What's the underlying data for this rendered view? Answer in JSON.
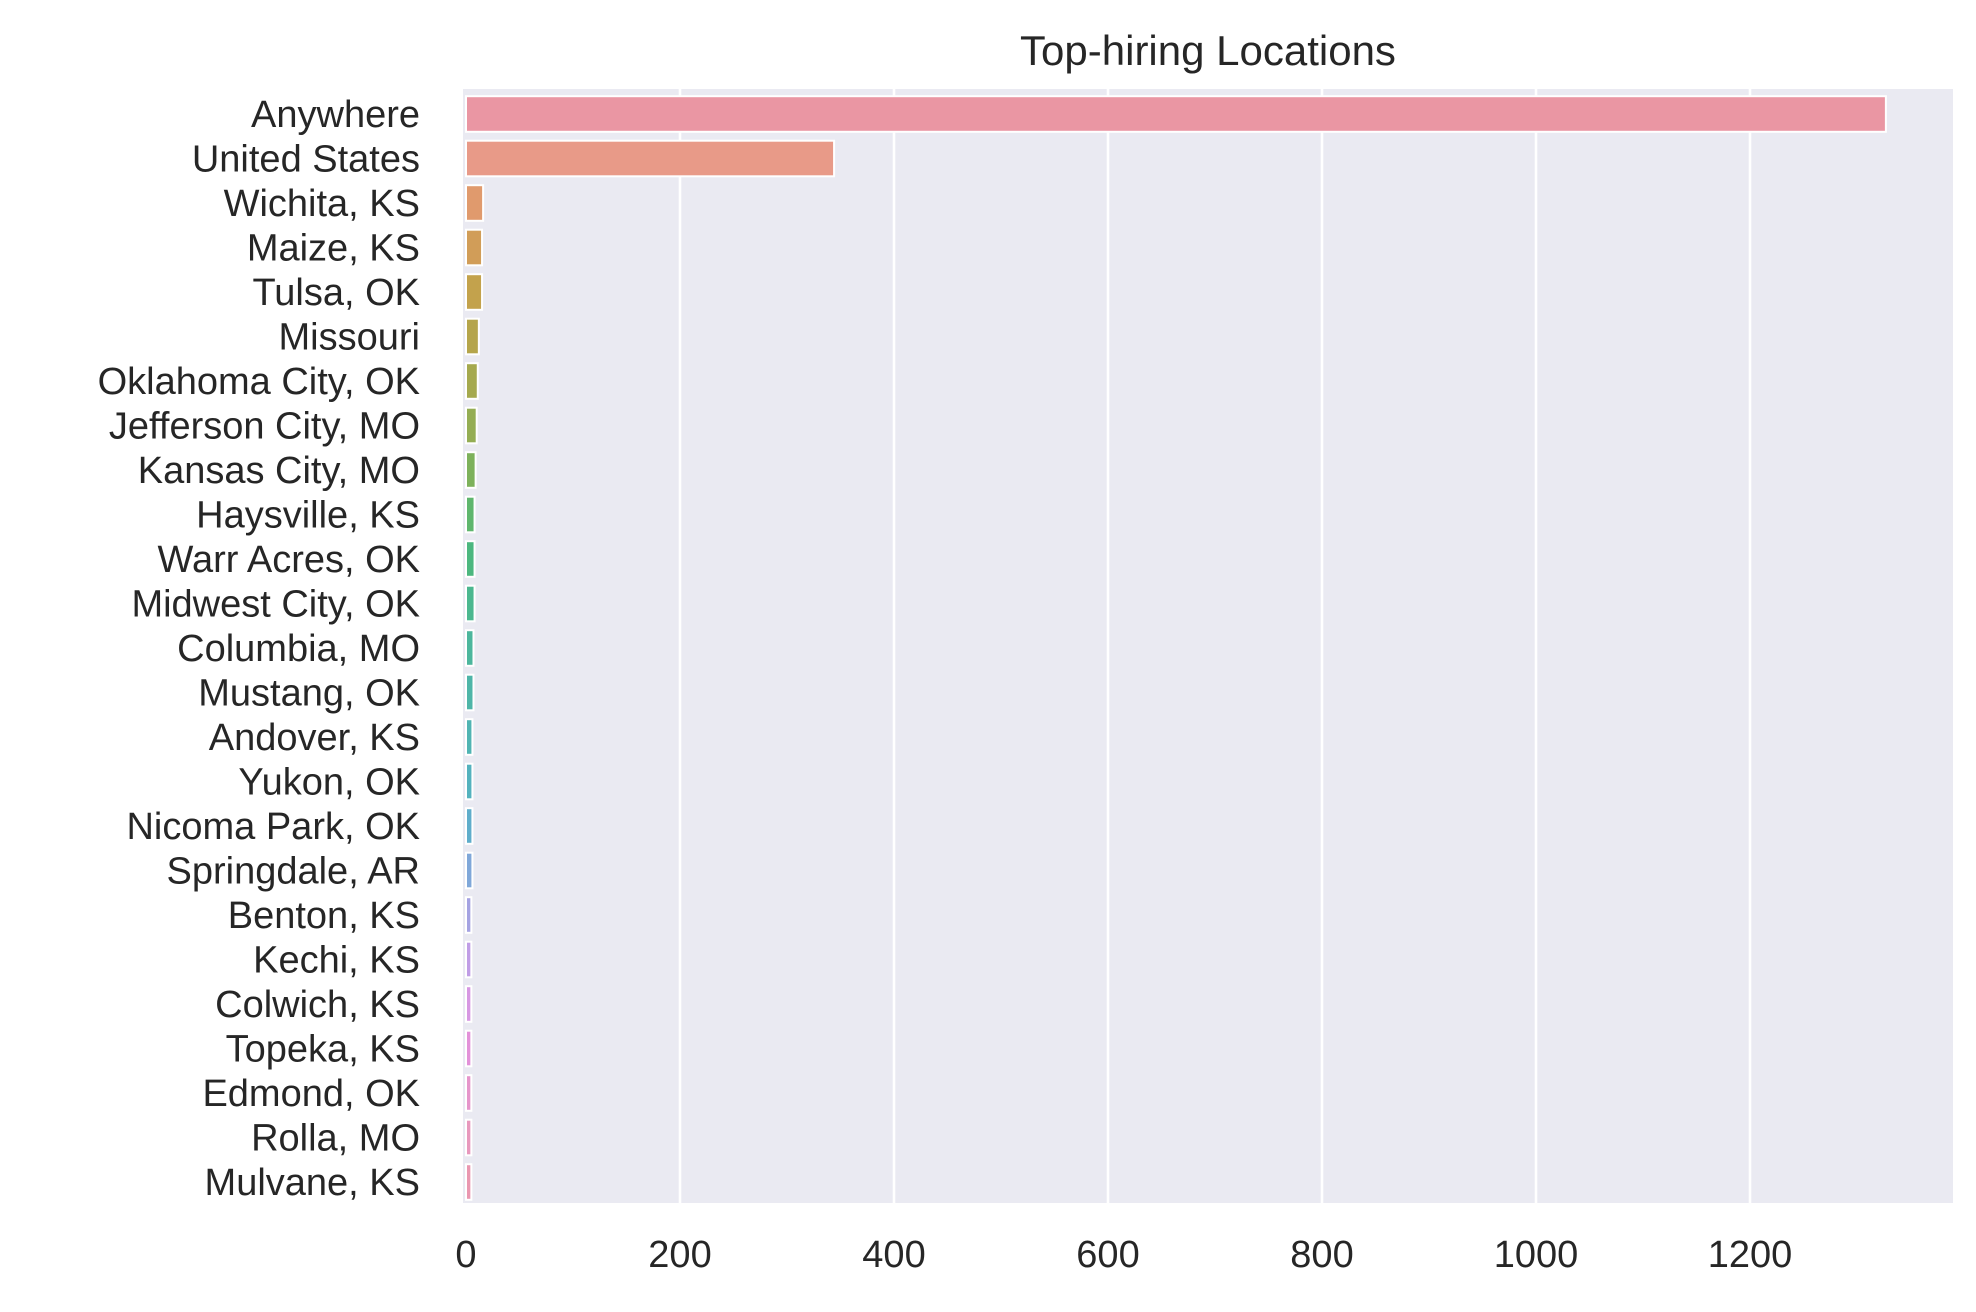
{
  "chart_data": {
    "type": "bar",
    "orientation": "horizontal",
    "title": "Top-hiring Locations",
    "xlabel": "",
    "ylabel": "",
    "xlim": [
      0,
      1390
    ],
    "xticks": [
      0,
      200,
      400,
      600,
      800,
      1000,
      1200
    ],
    "grid": true,
    "legend": "none",
    "categories": [
      "Anywhere",
      "United States",
      "Wichita, KS",
      "Maize, KS",
      "Tulsa, OK",
      "Missouri",
      "Oklahoma City, OK",
      "Jefferson City, MO",
      "Kansas City, MO",
      "Haysville, KS",
      "Warr Acres, OK",
      "Midwest City, OK",
      "Columbia, MO",
      "Mustang, OK",
      "Andover, KS",
      "Yukon, OK",
      "Nicoma Park, OK",
      "Springdale, AR",
      "Benton, KS",
      "Kechi, KS",
      "Colwich, KS",
      "Topeka, KS",
      "Edmond, OK",
      "Rolla, MO",
      "Mulvane, KS"
    ],
    "values": [
      1327,
      344,
      16,
      15,
      15,
      12,
      11,
      10,
      9,
      8,
      8,
      8,
      7,
      7,
      6,
      6,
      6,
      6,
      5,
      5,
      5,
      5,
      5,
      5,
      5
    ],
    "colors": [
      "#ea96a3",
      "#e89a88",
      "#e09a6d",
      "#d19d58",
      "#c3a24c",
      "#b5a54b",
      "#a5a94e",
      "#94ad54",
      "#7db15b",
      "#5fb66d",
      "#4cb77f",
      "#4bb78f",
      "#4cb69d",
      "#4eb5a8",
      "#50b4b3",
      "#54b2be",
      "#5fadcb",
      "#7fa7d9",
      "#a4a2e2",
      "#c09de6",
      "#d797e3",
      "#e391d9",
      "#e695cb",
      "#e898bd",
      "#ea97b0"
    ],
    "background_color": "#eaeaf2",
    "grid_color": "#ffffff"
  }
}
